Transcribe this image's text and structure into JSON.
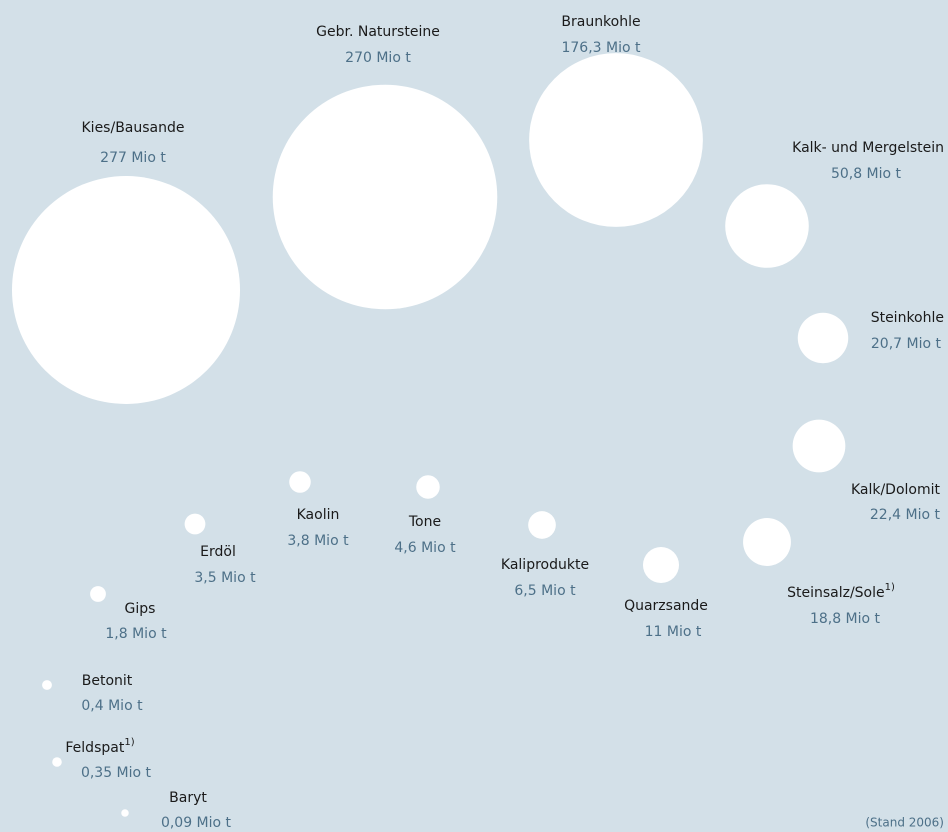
{
  "chart_data": {
    "type": "bubble",
    "categories": [
      "Kies/Bausande",
      "Gebr. Natursteine",
      "Braunkohle",
      "Kalk- und Mergelstein",
      "Steinkohle",
      "Kalk/Dolomit",
      "Steinsalz/Sole",
      "Quarzsande",
      "Kaliprodukte",
      "Tone",
      "Kaolin",
      "Erdöl",
      "Gips",
      "Betonit",
      "Feldspat",
      "Baryt"
    ],
    "superscripts": [
      null,
      null,
      null,
      null,
      null,
      null,
      "1)",
      null,
      null,
      null,
      null,
      null,
      null,
      null,
      "1)",
      null
    ],
    "values": [
      277,
      270,
      176.3,
      50.8,
      20.7,
      22.4,
      18.8,
      11,
      6.5,
      4.6,
      3.8,
      3.5,
      1.8,
      0.4,
      0.35,
      0.09
    ],
    "value_labels": [
      "277 Mio t",
      "270 Mio t",
      "176,3 Mio t",
      "50,8 Mio t",
      "20,7 Mio t",
      "22,4 Mio t",
      "18,8 Mio t",
      "11 Mio t",
      "6,5 Mio t",
      "4,6 Mio t",
      "3,8 Mio t",
      "3,5 Mio t",
      "1,8 Mio t",
      "0,4 Mio t",
      "0,35 Mio t",
      "0,09 Mio t"
    ],
    "color": "#ffffff",
    "note": "(Stand 2006)"
  }
}
